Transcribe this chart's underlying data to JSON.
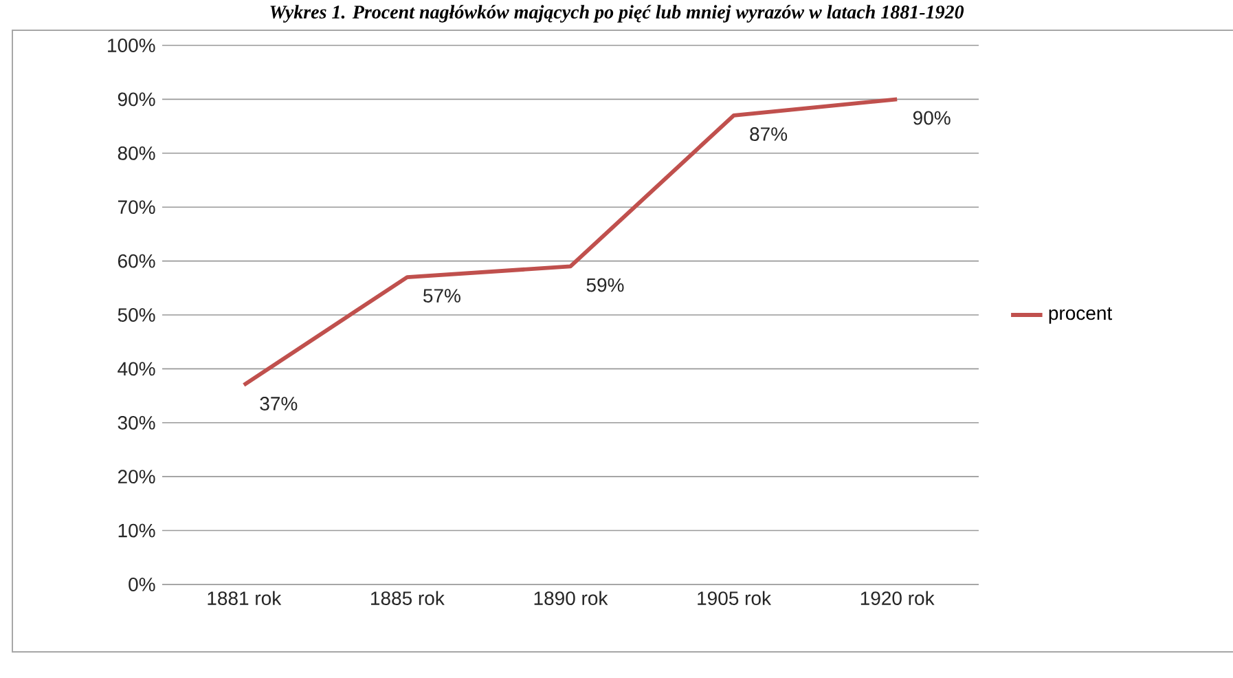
{
  "chart_data": {
    "type": "line",
    "title": "Wykres 1. Procent nagłówków mających po pięć lub mniej wyrazów w latach 1881-1920",
    "categories": [
      "1881 rok",
      "1885 rok",
      "1890 rok",
      "1905 rok",
      "1920 rok"
    ],
    "series": [
      {
        "name": "procent",
        "color": "#c0504d",
        "values": [
          37,
          57,
          59,
          87,
          90
        ],
        "value_labels": [
          "37%",
          "57%",
          "59%",
          "87%",
          "90%"
        ]
      }
    ],
    "ylim": [
      0,
      100
    ],
    "yticks": [
      {
        "value": 0,
        "label": "0%"
      },
      {
        "value": 10,
        "label": "10%"
      },
      {
        "value": 20,
        "label": "20%"
      },
      {
        "value": 30,
        "label": "30%"
      },
      {
        "value": 40,
        "label": "40%"
      },
      {
        "value": 50,
        "label": "50%"
      },
      {
        "value": 60,
        "label": "60%"
      },
      {
        "value": 70,
        "label": "70%"
      },
      {
        "value": 80,
        "label": "80%"
      },
      {
        "value": 90,
        "label": "90%"
      },
      {
        "value": 100,
        "label": "100%"
      }
    ],
    "grid": "y",
    "legend": "right",
    "marker": "none",
    "line_style": "solid"
  }
}
